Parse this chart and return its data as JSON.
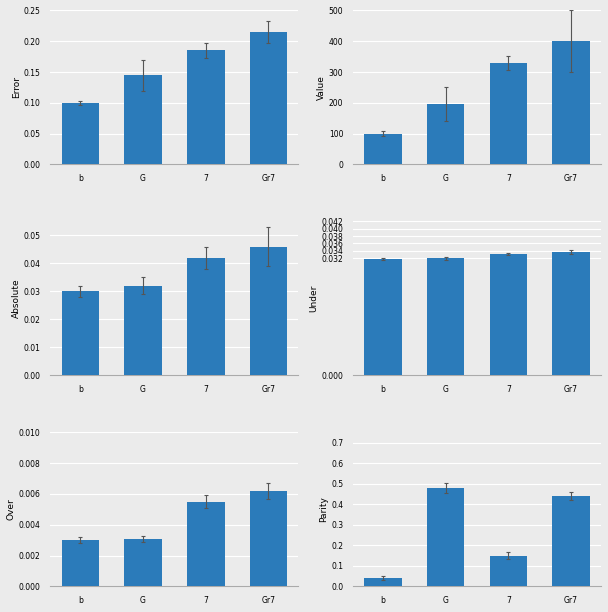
{
  "subplots": [
    {
      "ylabel": "Error",
      "categories": [
        "b",
        "G",
        "7",
        "Gr7"
      ],
      "values": [
        0.1,
        0.145,
        0.185,
        0.215
      ],
      "errors": [
        0.003,
        0.025,
        0.012,
        0.018
      ],
      "ylim": [
        0,
        0.25
      ],
      "yticks": [
        0,
        0.05,
        0.1,
        0.15,
        0.2,
        0.25
      ]
    },
    {
      "ylabel": "Value",
      "categories": [
        "b",
        "G",
        "7",
        "Gr7"
      ],
      "values": [
        100,
        195,
        330,
        400
      ],
      "errors": [
        8,
        55,
        22,
        100
      ],
      "ylim": [
        0,
        500
      ],
      "yticks": [
        0,
        100,
        200,
        300,
        400,
        500
      ]
    },
    {
      "ylabel": "Absolute",
      "categories": [
        "b",
        "G",
        "7",
        "Gr7"
      ],
      "values": [
        0.03,
        0.032,
        0.042,
        0.046
      ],
      "errors": [
        0.002,
        0.003,
        0.004,
        0.007
      ],
      "ylim": [
        0,
        0.055
      ],
      "yticks": [
        0,
        0.01,
        0.02,
        0.03,
        0.04,
        0.05
      ]
    },
    {
      "ylabel": "Under",
      "categories": [
        "b",
        "G",
        "7",
        "Gr7"
      ],
      "values": [
        0.0318,
        0.032,
        0.0331,
        0.0337
      ],
      "errors": [
        0.0003,
        0.0004,
        0.0004,
        0.0005
      ],
      "ylim": [
        0,
        0.042
      ],
      "yticks": [
        0,
        0.032,
        0.034,
        0.036,
        0.038,
        0.04,
        0.042
      ]
    },
    {
      "ylabel": "Over",
      "categories": [
        "b",
        "G",
        "7",
        "Gr7"
      ],
      "values": [
        0.003,
        0.0031,
        0.0055,
        0.0062
      ],
      "errors": [
        0.0002,
        0.0002,
        0.0004,
        0.0005
      ],
      "ylim": [
        0,
        0.01
      ],
      "yticks": [
        0,
        0.002,
        0.004,
        0.006,
        0.008,
        0.01
      ]
    },
    {
      "ylabel": "Parity",
      "categories": [
        "b",
        "G",
        "7",
        "Gr7"
      ],
      "values": [
        0.04,
        0.48,
        0.15,
        0.44
      ],
      "errors": [
        0.01,
        0.025,
        0.015,
        0.02
      ],
      "ylim": [
        0,
        0.75
      ],
      "yticks": [
        0,
        0.1,
        0.2,
        0.3,
        0.4,
        0.5,
        0.6,
        0.7
      ]
    }
  ],
  "bar_color": "#2b7bba",
  "bar_width": 0.6,
  "error_color": "#555555",
  "figsize": [
    6.08,
    6.12
  ],
  "dpi": 100,
  "background_color": "#ebebeb",
  "grid_color": "white",
  "tick_labelsize": 5.5,
  "ylabel_fontsize": 6.5,
  "capsize": 1.5
}
